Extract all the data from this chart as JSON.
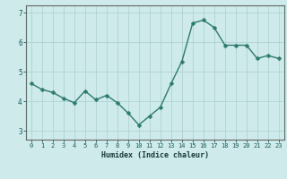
{
  "x": [
    0,
    1,
    2,
    3,
    4,
    5,
    6,
    7,
    8,
    9,
    10,
    11,
    12,
    13,
    14,
    15,
    16,
    17,
    18,
    19,
    20,
    21,
    22,
    23
  ],
  "y": [
    4.6,
    4.4,
    4.3,
    4.1,
    3.95,
    4.35,
    4.05,
    4.2,
    3.95,
    3.6,
    3.2,
    3.5,
    3.8,
    4.6,
    5.35,
    6.65,
    6.75,
    6.5,
    5.9,
    5.9,
    5.9,
    5.45,
    5.55,
    5.45
  ],
  "line_color": "#2d7a6e",
  "bg_color": "#ceeaea",
  "grid_color": "#aed4d4",
  "axis_color": "#666666",
  "xlabel": "Humidex (Indice chaleur)",
  "ylim": [
    2.7,
    7.25
  ],
  "xlim": [
    -0.5,
    23.5
  ],
  "yticks": [
    3,
    4,
    5,
    6,
    7
  ],
  "xticks": [
    0,
    1,
    2,
    3,
    4,
    5,
    6,
    7,
    8,
    9,
    10,
    11,
    12,
    13,
    14,
    15,
    16,
    17,
    18,
    19,
    20,
    21,
    22,
    23
  ],
  "markersize": 2.5,
  "linewidth": 1.0
}
